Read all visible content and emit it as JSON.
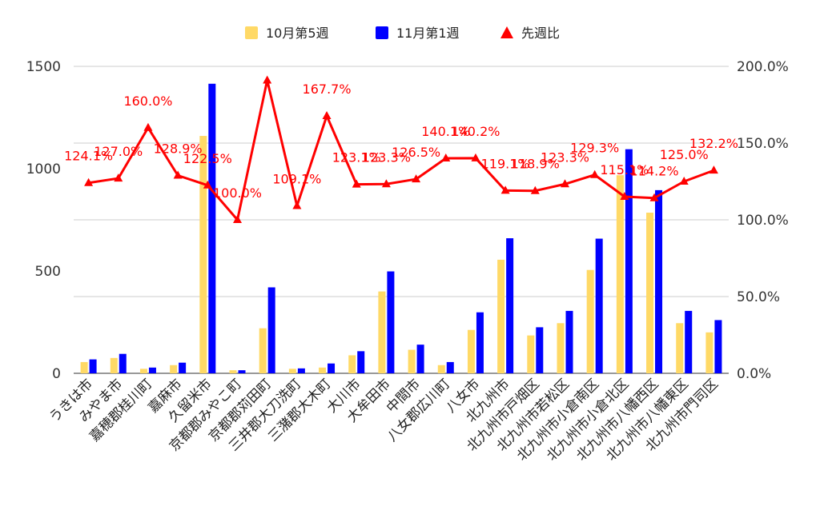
{
  "chart_data": {
    "type": "bar",
    "categories": [
      "うきは市",
      "みやま市",
      "嘉穂郡桂川町",
      "嘉麻市",
      "久留米市",
      "京都郡みやこ町",
      "京都郡苅田町",
      "三井郡大刀洗町",
      "三潴郡大木町",
      "大川市",
      "大牟田市",
      "中間市",
      "八女郡広川町",
      "八女市",
      "北九州市",
      "北九州市戸畑区",
      "北九州市若松区",
      "北九州市小倉南区",
      "北九州市小倉北区",
      "北九州市八幡西区",
      "北九州市八幡東区",
      "北九州市門司区"
    ],
    "series": [
      {
        "name": "10月第5週",
        "kind": "bar",
        "axis": "left",
        "color": "#ffd966",
        "values": [
          55,
          75,
          22,
          40,
          1160,
          15,
          220,
          22,
          28,
          88,
          400,
          115,
          40,
          212,
          555,
          185,
          245,
          505,
          968,
          785,
          245,
          200
        ]
      },
      {
        "name": "11月第1週",
        "kind": "bar",
        "axis": "left",
        "color": "#0000ff",
        "values": [
          68,
          95,
          28,
          52,
          1415,
          15,
          420,
          24,
          48,
          108,
          498,
          140,
          55,
          298,
          660,
          225,
          305,
          658,
          1095,
          895,
          305,
          260
        ]
      },
      {
        "name": "先週比",
        "kind": "line",
        "axis": "right",
        "color": "#ff0000",
        "values": [
          124.1,
          127.0,
          160.0,
          128.9,
          122.5,
          100.0,
          190.9,
          109.1,
          167.7,
          123.1,
          123.3,
          126.5,
          140.1,
          140.2,
          119.1,
          118.9,
          123.3,
          129.3,
          115.1,
          114.2,
          125.0,
          132.2
        ],
        "labels": [
          "124.1%",
          "127.0%",
          "160.0%",
          "128.9%",
          "122.5%",
          "100.0%",
          "",
          "109.1%",
          "167.7%",
          "123.1%",
          "123.3%",
          "126.5%",
          "140.1%",
          "140.2%",
          "119.1%",
          "118.9%",
          "123.3%",
          "129.3%",
          "115.1%",
          "114.2%",
          "125.0%",
          "132.2%"
        ]
      }
    ],
    "y_left": {
      "ylim": [
        0,
        1500
      ],
      "ticks": [
        "0",
        "500",
        "1000",
        "1500"
      ]
    },
    "y_right": {
      "ylim": [
        0,
        200
      ],
      "ticks": [
        "0.0%",
        "50.0%",
        "100.0%",
        "150.0%",
        "200.0%"
      ]
    },
    "legend": {
      "position": "top"
    },
    "grid": true
  }
}
